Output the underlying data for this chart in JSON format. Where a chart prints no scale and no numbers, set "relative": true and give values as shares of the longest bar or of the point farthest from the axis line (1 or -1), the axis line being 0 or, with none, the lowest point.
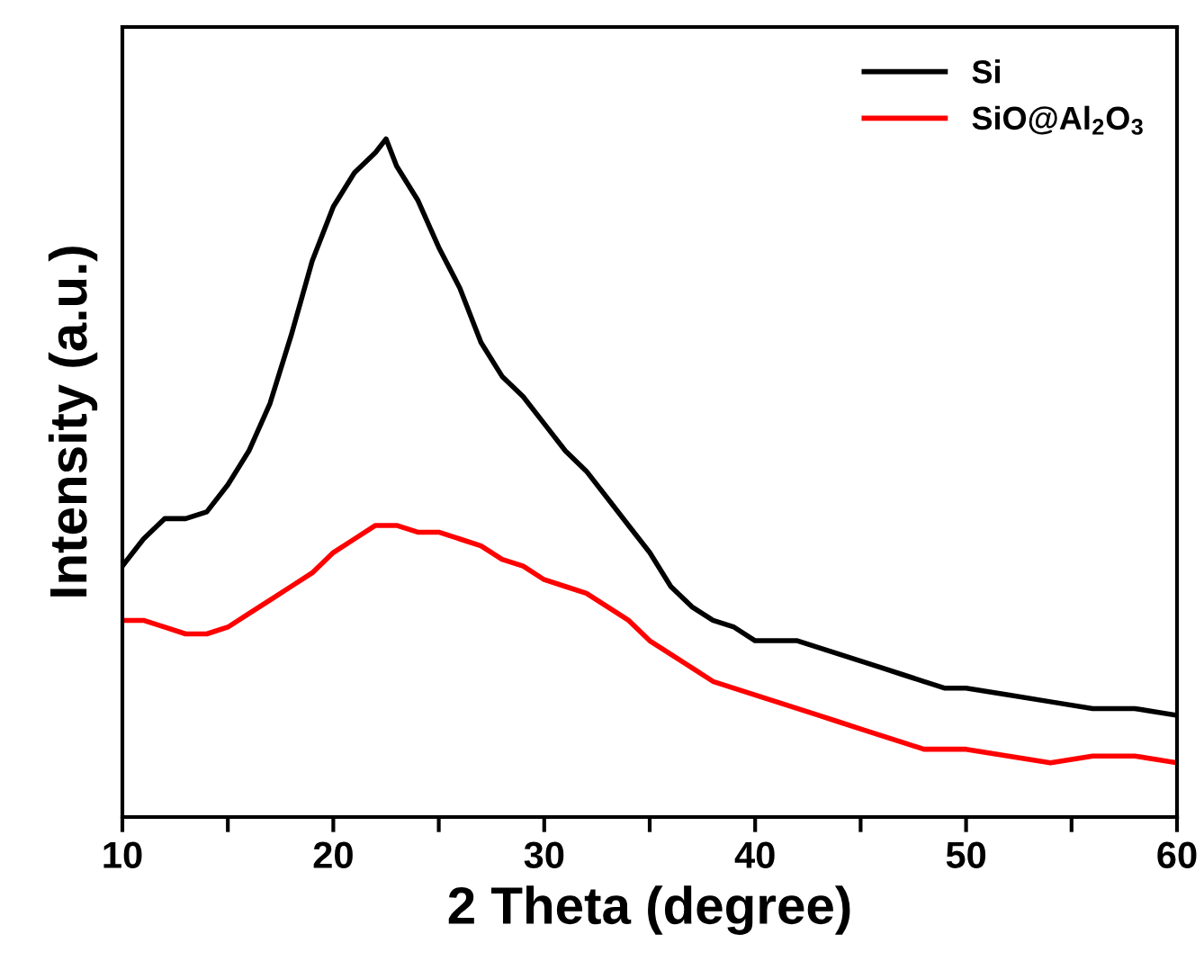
{
  "chart_data": {
    "type": "line",
    "relative": true,
    "xlabel": "2 Theta (degree)",
    "ylabel": "Intensity (a.u.)",
    "xlim": [
      10,
      60
    ],
    "xticks": [
      10,
      {
        "value": 15,
        "label": null
      },
      20,
      {
        "value": 25,
        "label": null
      },
      30,
      {
        "value": 35,
        "label": null
      },
      40,
      {
        "value": 45,
        "label": null
      },
      50,
      {
        "value": 55,
        "label": null
      },
      60
    ],
    "legend": "top right",
    "grid": false,
    "tick_labels": "x",
    "series": [
      {
        "name": "Si",
        "color": "#000000",
        "x": [
          10,
          11,
          12,
          13,
          14,
          15,
          16,
          17,
          18,
          19,
          20,
          21,
          22,
          22.5,
          23,
          24,
          25,
          26,
          27,
          28,
          29,
          30,
          31,
          32,
          33,
          34,
          35,
          36,
          37,
          38,
          39,
          40,
          41,
          42,
          43,
          44,
          45,
          46,
          47,
          48,
          49,
          50,
          52,
          54,
          56,
          58,
          60
        ],
        "values": [
          0.37,
          0.41,
          0.44,
          0.44,
          0.45,
          0.49,
          0.54,
          0.61,
          0.71,
          0.82,
          0.9,
          0.95,
          0.98,
          1,
          0.96,
          0.91,
          0.84,
          0.78,
          0.7,
          0.65,
          0.62,
          0.58,
          0.54,
          0.51,
          0.47,
          0.43,
          0.39,
          0.34,
          0.31,
          0.29,
          0.28,
          0.26,
          0.26,
          0.26,
          0.25,
          0.24,
          0.23,
          0.22,
          0.21,
          0.2,
          0.19,
          0.19,
          0.18,
          0.17,
          0.16,
          0.16,
          0.15
        ]
      },
      {
        "name": "SiO@Al$_{2}$O$_{3}$",
        "color": "#ff0000",
        "x": [
          10,
          11,
          12,
          13,
          14,
          15,
          16,
          17,
          18,
          19,
          20,
          21,
          22,
          23,
          24,
          25,
          26,
          27,
          28,
          29,
          30,
          31,
          32,
          33,
          34,
          35,
          36,
          37,
          38,
          39,
          40,
          41,
          42,
          43,
          44,
          45,
          46,
          47,
          48,
          50,
          52,
          54,
          56,
          58,
          60
        ],
        "values": [
          0.29,
          0.29,
          0.28,
          0.27,
          0.27,
          0.28,
          0.3,
          0.32,
          0.34,
          0.36,
          0.39,
          0.41,
          0.43,
          0.43,
          0.42,
          0.42,
          0.41,
          0.4,
          0.38,
          0.37,
          0.35,
          0.34,
          0.33,
          0.31,
          0.29,
          0.26,
          0.24,
          0.22,
          0.2,
          0.19,
          0.18,
          0.17,
          0.16,
          0.15,
          0.14,
          0.13,
          0.12,
          0.11,
          0.1,
          0.1,
          0.09,
          0.08,
          0.09,
          0.09,
          0.08
        ]
      }
    ]
  }
}
